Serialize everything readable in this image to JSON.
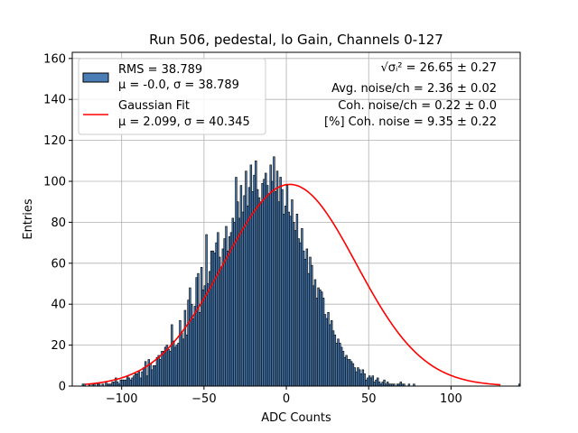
{
  "chart_data": {
    "type": "bar",
    "title": "Run 506, pedestal, lo Gain, Channels 0-127",
    "xlabel": "ADC Counts",
    "ylabel": "Entries",
    "xlim": [
      -130,
      142
    ],
    "ylim": [
      0,
      163
    ],
    "xticks": [
      -100,
      -50,
      0,
      50,
      100
    ],
    "yticks": [
      0,
      20,
      40,
      60,
      80,
      100,
      120,
      140,
      160
    ],
    "grid": true,
    "legend_position": "top-left",
    "histogram": {
      "name": "RMS = 38.789",
      "stats_label": "μ = -0.0, σ = 38.789",
      "color": "#4a7db5",
      "edge_color": "#000000",
      "bin_start": -128,
      "bin_width": 1,
      "counts": [
        0,
        0,
        0,
        0,
        1,
        1,
        0,
        0,
        1,
        0,
        1,
        1,
        0,
        1,
        1,
        0,
        1,
        0,
        2,
        1,
        1,
        1,
        2,
        2,
        4,
        2,
        1,
        3,
        3,
        3,
        3,
        5,
        4,
        3,
        4,
        5,
        6,
        6,
        7,
        4,
        7,
        9,
        12,
        5,
        13,
        11,
        8,
        10,
        10,
        14,
        15,
        13,
        17,
        17,
        19,
        20,
        18,
        17,
        30,
        22,
        19,
        20,
        21,
        32,
        26,
        23,
        37,
        25,
        42,
        48,
        40,
        33,
        39,
        53,
        55,
        36,
        58,
        47,
        49,
        74,
        50,
        56,
        66,
        66,
        65,
        70,
        75,
        63,
        58,
        67,
        72,
        78,
        66,
        73,
        75,
        82,
        80,
        102,
        90,
        82,
        98,
        85,
        93,
        105,
        88,
        97,
        108,
        95,
        103,
        110,
        96,
        92,
        90,
        99,
        101,
        104,
        98,
        94,
        108,
        100,
        112,
        95,
        105,
        90,
        102,
        96,
        84,
        88,
        98,
        85,
        83,
        91,
        80,
        76,
        84,
        72,
        70,
        77,
        66,
        62,
        67,
        55,
        63,
        59,
        49,
        52,
        43,
        48,
        47,
        46,
        43,
        35,
        33,
        36,
        30,
        32,
        27,
        25,
        21,
        23,
        21,
        19,
        17,
        14,
        15,
        13,
        13,
        12,
        11,
        9,
        7,
        9,
        8,
        6,
        8,
        6,
        3,
        4,
        5,
        4,
        5,
        2,
        3,
        4,
        2,
        1,
        2,
        3,
        1,
        2,
        1,
        1,
        1,
        1,
        0,
        1,
        1,
        2,
        1,
        1,
        0,
        0,
        1,
        0,
        0,
        1,
        0,
        0,
        0,
        0,
        0,
        0,
        0,
        0,
        0,
        0,
        0,
        0,
        0,
        0,
        0,
        0,
        0,
        0,
        0,
        0,
        0,
        0,
        0,
        0,
        0,
        0,
        0,
        0,
        0,
        0,
        0,
        0,
        0,
        0,
        0,
        0,
        0,
        0,
        0,
        0,
        0,
        0,
        0,
        0,
        0,
        0,
        0,
        0,
        0,
        0,
        0,
        0,
        0,
        0,
        0,
        0,
        0,
        0,
        0,
        0,
        0,
        0,
        0,
        1
      ]
    },
    "fit": {
      "name": "Gaussian Fit",
      "stats_label": "μ = 2.099, σ = 40.345",
      "color": "#ff0000",
      "mu": 2.099,
      "sigma": 40.345,
      "amplitude": 98.5,
      "x_range": [
        -122,
        130
      ]
    },
    "annotations": {
      "rms_label": "√σᵢ² = 26.65 ± 0.27",
      "avg_noise": "Avg. noise/ch = 2.36 ± 0.02",
      "coh_noise": "Coh. noise/ch = 0.22 ± 0.0",
      "coh_noise_pct": "[%] Coh. noise = 9.35 ± 0.22"
    }
  }
}
